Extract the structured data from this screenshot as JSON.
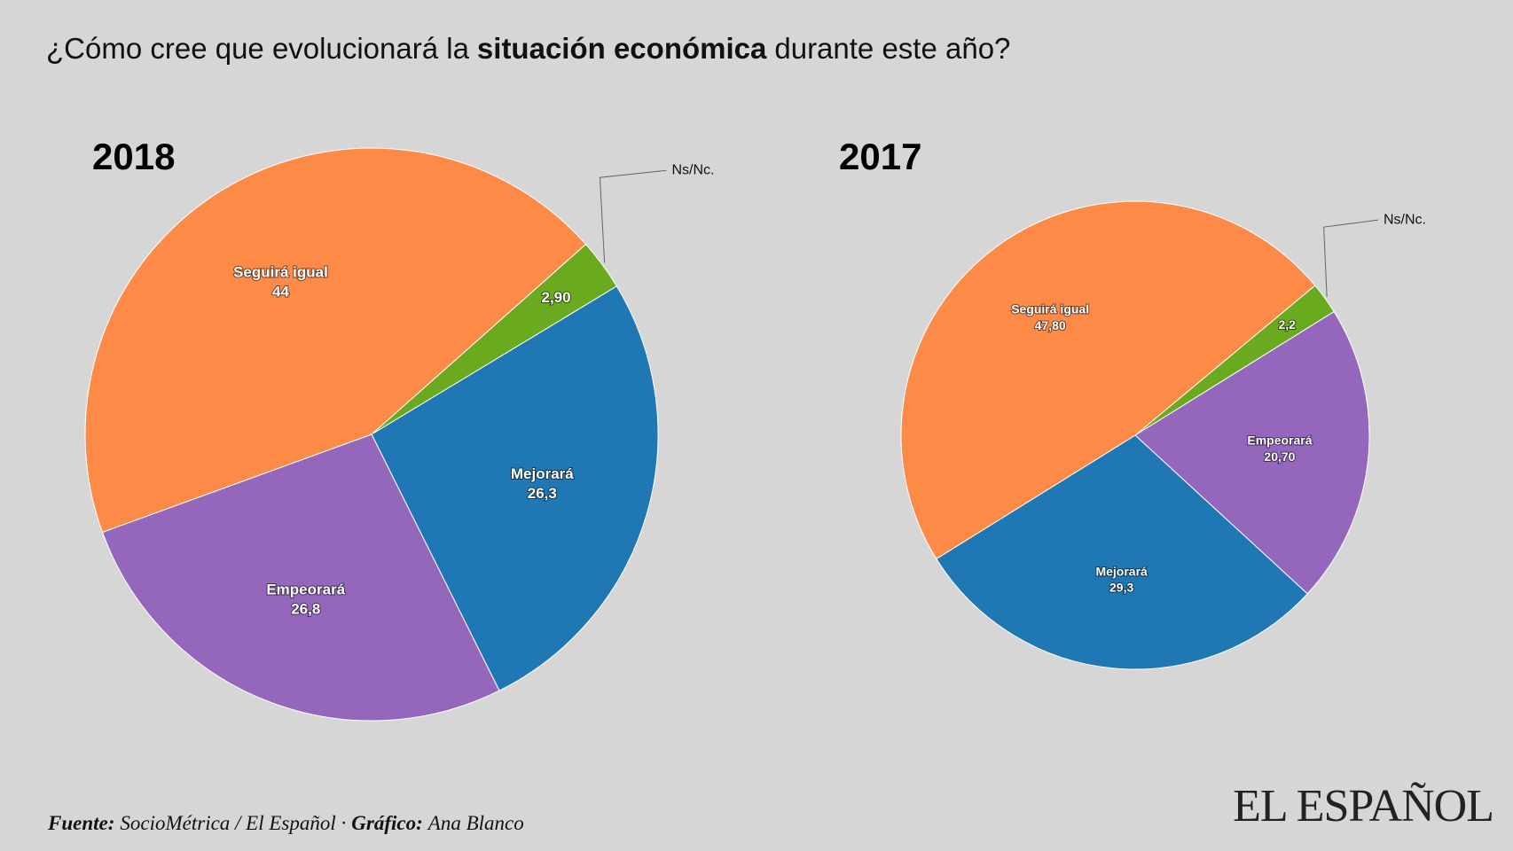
{
  "title": [
    "¿Cómo cree que evolucionará la",
    "situación económica",
    "durante este año?"
  ],
  "footer": [
    "Fuente:",
    "SocioMétrica / El Español ·",
    "Gráfico:",
    "Ana Blanco"
  ],
  "logo": "EL ESPAÑOL",
  "chart_data": [
    {
      "type": "pie",
      "title": "2018",
      "categories": [
        "Ns/Nc.",
        "Mejorará",
        "Empeorará",
        "Seguirá igual"
      ],
      "values": [
        2.9,
        26.3,
        26.8,
        44
      ],
      "value_labels": [
        "2,90",
        "26,3",
        "26,8",
        "44"
      ],
      "colors": [
        "#6aaa1e",
        "#1f77b4",
        "#9467bd",
        "#fd8a47"
      ]
    },
    {
      "type": "pie",
      "title": "2017",
      "categories": [
        "Ns/Nc.",
        "Empeorará",
        "Mejorará",
        "Seguirá igual"
      ],
      "values": [
        2.2,
        20.7,
        29.3,
        47.8
      ],
      "value_labels": [
        "2,2",
        "20,70",
        "29,3",
        "47,80"
      ],
      "colors": [
        "#6aaa1e",
        "#9467bd",
        "#1f77b4",
        "#fd8a47"
      ]
    }
  ]
}
